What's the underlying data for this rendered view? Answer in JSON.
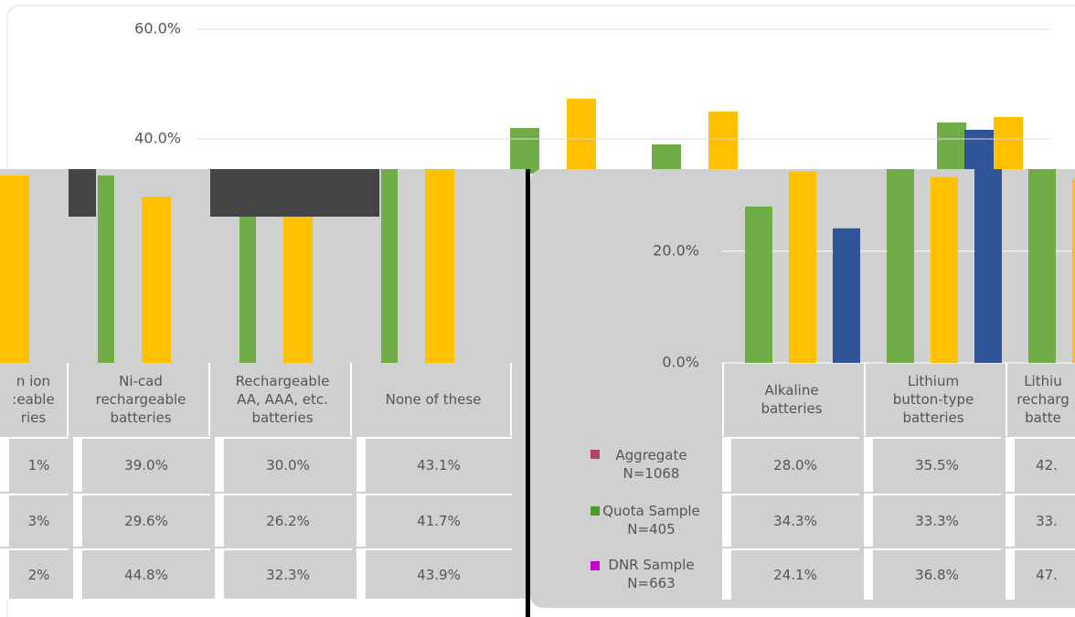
{
  "background_axis": {
    "yticks": [
      {
        "value": 60,
        "label": "60.0%"
      },
      {
        "value": 40,
        "label": "40.0%"
      }
    ],
    "ylim": [
      20,
      65
    ]
  },
  "left_panel": {
    "columns": [
      "n ion\n:eable\nries",
      "Ni-cad\nrechargeable\nbatteries",
      "Rechargeable\nAA, AAA, etc.\nbatteries",
      "None of these"
    ],
    "rows": [
      [
        "1%",
        "39.0%",
        "30.0%",
        "43.1%"
      ],
      [
        "3%",
        "29.6%",
        "26.2%",
        "41.7%"
      ],
      [
        "2%",
        "44.8%",
        "32.3%",
        "43.9%"
      ]
    ]
  },
  "chart_data": {
    "type": "bar",
    "categories": [
      "Alkaline\nbatteries",
      "Lithium\nbutton-type\nbatteries",
      "Lithiu\nrecharg\nbatte"
    ],
    "ylim": [
      0,
      34.7
    ],
    "yticks": [
      {
        "value": 0,
        "label": "0.0%"
      },
      {
        "value": 20,
        "label": "20.0%"
      }
    ],
    "series": [
      {
        "name": "Aggregate\nN=1068",
        "color": "#70ad47",
        "swatch_color": "#b0446b",
        "values": [
          28.0,
          35.5,
          42
        ],
        "value_labels": [
          "28.0%",
          "35.5%",
          "42."
        ]
      },
      {
        "name": "Quota Sample\nN=405",
        "color": "#ffc000",
        "swatch_color": "#4a9a2c",
        "values": [
          34.3,
          33.3,
          33
        ],
        "value_labels": [
          "34.3%",
          "33.3%",
          "33."
        ]
      },
      {
        "name": "DNR Sample\nN=663",
        "color": "#2f5597",
        "swatch_color": "#cc00cc",
        "values": [
          24.1,
          36.8,
          47
        ],
        "value_labels": [
          "24.1%",
          "36.8%",
          "47."
        ]
      }
    ]
  }
}
